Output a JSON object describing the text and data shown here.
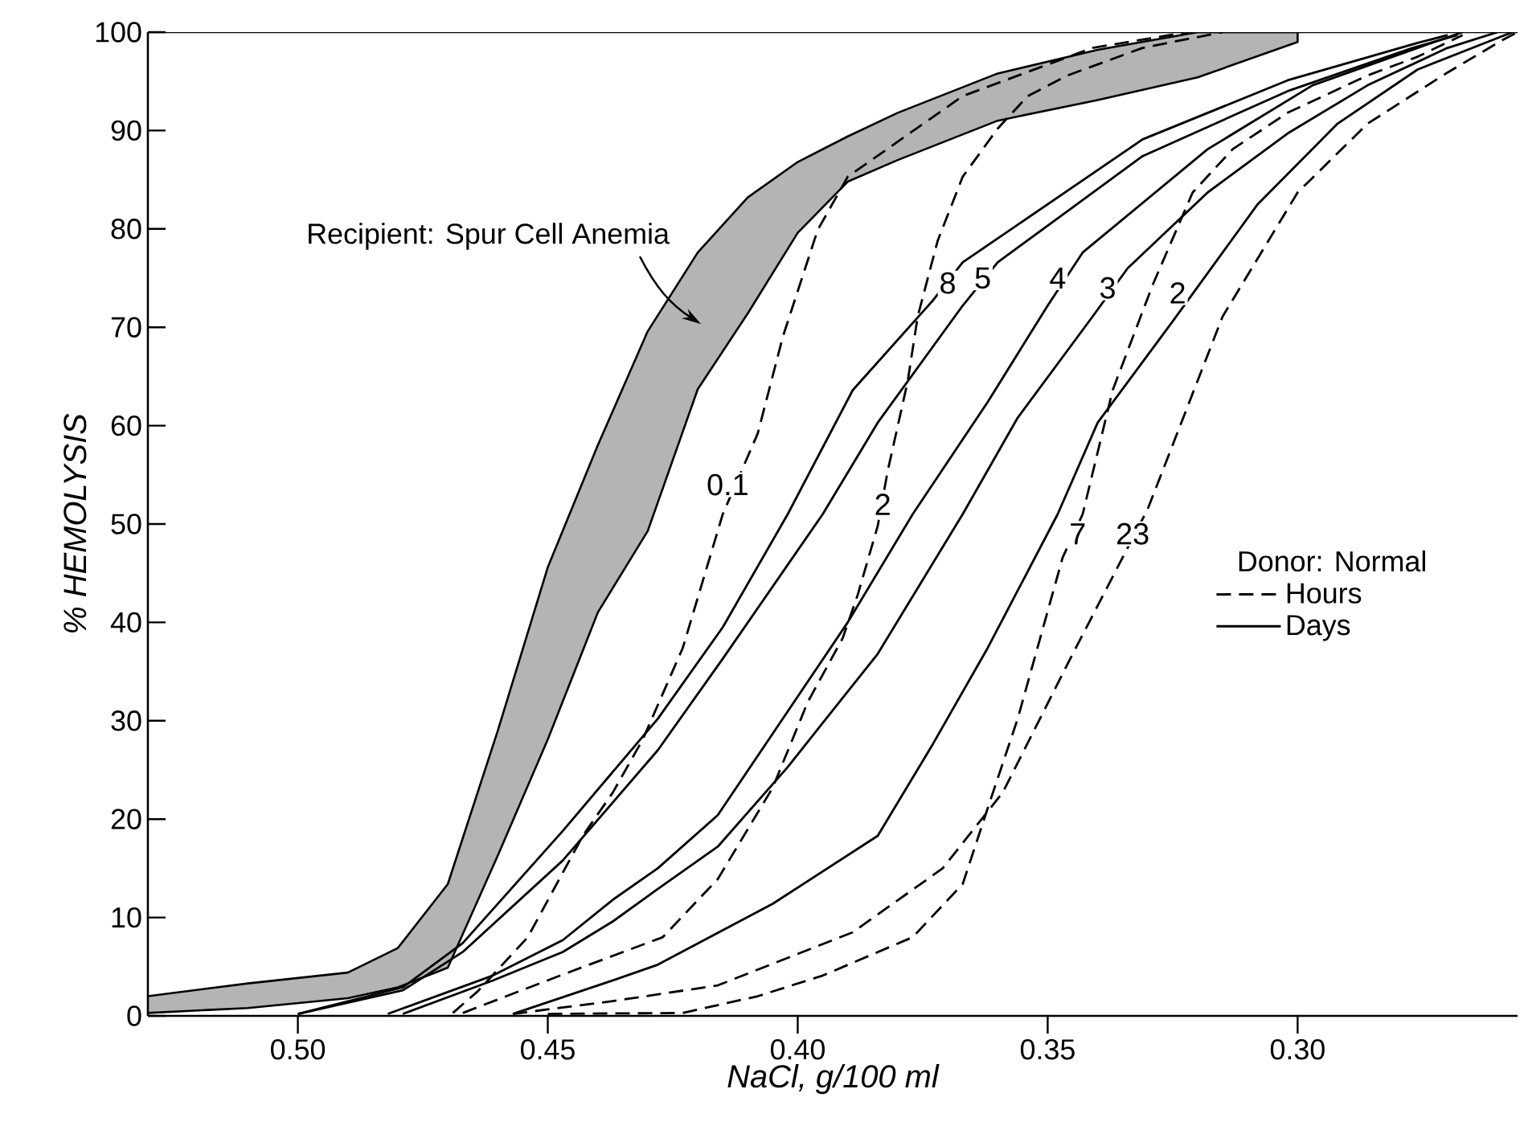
{
  "chart_data": {
    "type": "line",
    "xlabel": "NaCl, g/100 ml",
    "ylabel": "% HEMOLYSIS",
    "xlim": [
      0.53,
      0.256
    ],
    "ylim": [
      0,
      100
    ],
    "xticks": [
      {
        "value": 0.5,
        "label": "0.50"
      },
      {
        "value": 0.45,
        "label": "0.45"
      },
      {
        "value": 0.4,
        "label": "0.40"
      },
      {
        "value": 0.35,
        "label": "0.35"
      },
      {
        "value": 0.3,
        "label": "0.30"
      }
    ],
    "yticks": [
      0,
      10,
      20,
      30,
      40,
      50,
      60,
      70,
      80,
      90,
      100
    ],
    "legend": "right",
    "legend_title": "Donor: Normal",
    "series": [
      {
        "color": "#b4b4b4",
        "x": [
          0.53,
          0.51,
          0.49,
          0.48,
          0.47,
          0.46,
          0.45,
          0.44,
          0.43,
          0.42,
          0.41,
          0.4,
          0.39,
          0.38,
          0.36,
          0.34,
          0.32,
          0.3
        ],
        "values": [
          null,
          null,
          null,
          null,
          null,
          null,
          null,
          null,
          null,
          null,
          null,
          null,
          null,
          null,
          null,
          null,
          null,
          null
        ],
        "upper": [
          2,
          3.3,
          4.4,
          6.9,
          13.4,
          29,
          45.6,
          58,
          69.6,
          77.6,
          83.2,
          86.8,
          89.4,
          91.8,
          95.8,
          98.2,
          100,
          100
        ],
        "lower": [
          0.3,
          0.8,
          1.8,
          2.9,
          4.9,
          16.3,
          28.1,
          41,
          49.3,
          63.7,
          71.4,
          79.6,
          84.8,
          87,
          91,
          93.1,
          95.4,
          99
        ]
      },
      {
        "name": "Hours",
        "color": "#000000",
        "line_style": "dashed",
        "x": [
          0.469,
          0.464,
          0.454,
          0.443,
          0.437,
          0.431,
          0.423,
          0.415,
          0.408,
          0.403,
          0.396,
          0.39,
          0.367,
          0.341,
          0.322
        ],
        "values": [
          0.3,
          2.5,
          8.0,
          18.3,
          22.7,
          28.1,
          37.4,
          51.0,
          59.2,
          69.0,
          79.9,
          85.3,
          93.5,
          98.4,
          100
        ]
      },
      {
        "color": "#000000",
        "line_style": "dashed",
        "x": [
          0.467,
          0.447,
          0.427,
          0.416,
          0.405,
          0.398,
          0.391,
          0.388,
          0.384,
          0.382,
          0.378,
          0.376,
          0.372,
          0.367,
          0.36,
          0.354,
          0.346,
          0.331,
          0.315
        ],
        "values": [
          0.3,
          4.2,
          8.0,
          13.9,
          23.2,
          31.9,
          38.4,
          42.8,
          49.8,
          55.4,
          64.5,
          71.1,
          78.8,
          85.3,
          90.2,
          93.5,
          95.6,
          98.4,
          100
        ]
      },
      {
        "color": "#000000",
        "line_style": "dashed",
        "x": [
          0.45,
          0.423,
          0.408,
          0.395,
          0.377,
          0.367,
          0.362,
          0.356,
          0.347,
          0.343,
          0.337,
          0.329,
          0.321,
          0.313,
          0.302,
          0.286,
          0.276,
          0.267
        ],
        "values": [
          0.2,
          0.3,
          2.0,
          4.1,
          8.0,
          13.4,
          21.1,
          30.2,
          46.6,
          51.0,
          63.6,
          74.3,
          83.7,
          88.1,
          91.8,
          95.6,
          97.5,
          99.7
        ]
      },
      {
        "color": "#000000",
        "line_style": "dashed",
        "x": [
          0.457,
          0.437,
          0.416,
          0.389,
          0.371,
          0.359,
          0.346,
          0.335,
          0.33,
          0.315,
          0.3,
          0.286,
          0.27,
          0.259,
          0.256
        ],
        "values": [
          0.2,
          1.5,
          3.1,
          8.5,
          15.0,
          22.7,
          35.8,
          46.6,
          51.5,
          71.1,
          83.7,
          90.7,
          95.9,
          99.2,
          100
        ]
      },
      {
        "name": "Days",
        "color": "#000000",
        "line_style": "solid",
        "x": [
          0.5,
          0.479,
          0.467,
          0.447,
          0.428,
          0.415,
          0.402,
          0.389,
          0.373,
          0.367,
          0.331,
          0.302,
          0.276,
          0.27
        ],
        "values": [
          0.2,
          2.9,
          7.4,
          18.8,
          30.2,
          39.5,
          51.0,
          63.6,
          72.7,
          76.6,
          89.1,
          95.1,
          98.9,
          99.7
        ]
      },
      {
        "color": "#000000",
        "line_style": "solid",
        "x": [
          0.5,
          0.479,
          0.467,
          0.447,
          0.428,
          0.415,
          0.395,
          0.384,
          0.367,
          0.36,
          0.331,
          0.302,
          0.277,
          0.268
        ],
        "values": [
          0.2,
          2.6,
          6.5,
          15.8,
          27.0,
          36.3,
          51.0,
          60.3,
          72.2,
          76.6,
          87.4,
          94.0,
          98.4,
          99.7
        ]
      },
      {
        "color": "#000000",
        "line_style": "solid",
        "x": [
          0.482,
          0.461,
          0.447,
          0.437,
          0.428,
          0.416,
          0.39,
          0.377,
          0.362,
          0.35,
          0.343,
          0.318,
          0.297,
          0.276,
          0.267
        ],
        "values": [
          0.2,
          4.1,
          7.7,
          11.8,
          15.0,
          20.4,
          40.0,
          51.0,
          62.4,
          72.2,
          77.6,
          88.1,
          94.6,
          98.4,
          100
        ]
      },
      {
        "color": "#000000",
        "line_style": "solid",
        "x": [
          0.479,
          0.461,
          0.447,
          0.437,
          0.428,
          0.416,
          0.402,
          0.384,
          0.367,
          0.356,
          0.341,
          0.334,
          0.318,
          0.302,
          0.286,
          0.27,
          0.26
        ],
        "values": [
          0.2,
          3.6,
          6.5,
          9.6,
          12.9,
          17.2,
          25.3,
          36.8,
          51.0,
          60.8,
          71.1,
          76.0,
          83.7,
          89.7,
          94.6,
          98.4,
          100
        ]
      },
      {
        "color": "#000000",
        "line_style": "solid",
        "x": [
          0.457,
          0.437,
          0.428,
          0.405,
          0.384,
          0.373,
          0.362,
          0.348,
          0.34,
          0.325,
          0.308,
          0.292,
          0.276,
          0.265,
          0.257
        ],
        "values": [
          0.2,
          3.6,
          5.2,
          11.4,
          18.3,
          27.6,
          37.4,
          51.0,
          60.3,
          70.6,
          82.5,
          90.7,
          96.2,
          98.4,
          100
        ]
      }
    ],
    "annotations": [
      "Recipient: Spur Cell Anemia",
      {
        "text": "0.1",
        "x": 0.414,
        "y": 54
      },
      {
        "text": "2",
        "x": 0.383,
        "y": 52
      },
      {
        "text": "8",
        "x": 0.37,
        "y": 74.5
      },
      {
        "text": "5",
        "x": 0.363,
        "y": 75
      },
      {
        "text": "4",
        "x": 0.348,
        "y": 75
      },
      {
        "text": "3",
        "x": 0.338,
        "y": 74
      },
      {
        "text": "2",
        "x": 0.324,
        "y": 73.5
      },
      {
        "text": "7",
        "x": 0.344,
        "y": 49
      },
      {
        "text": "23",
        "x": 0.333,
        "y": 49
      }
    ]
  }
}
